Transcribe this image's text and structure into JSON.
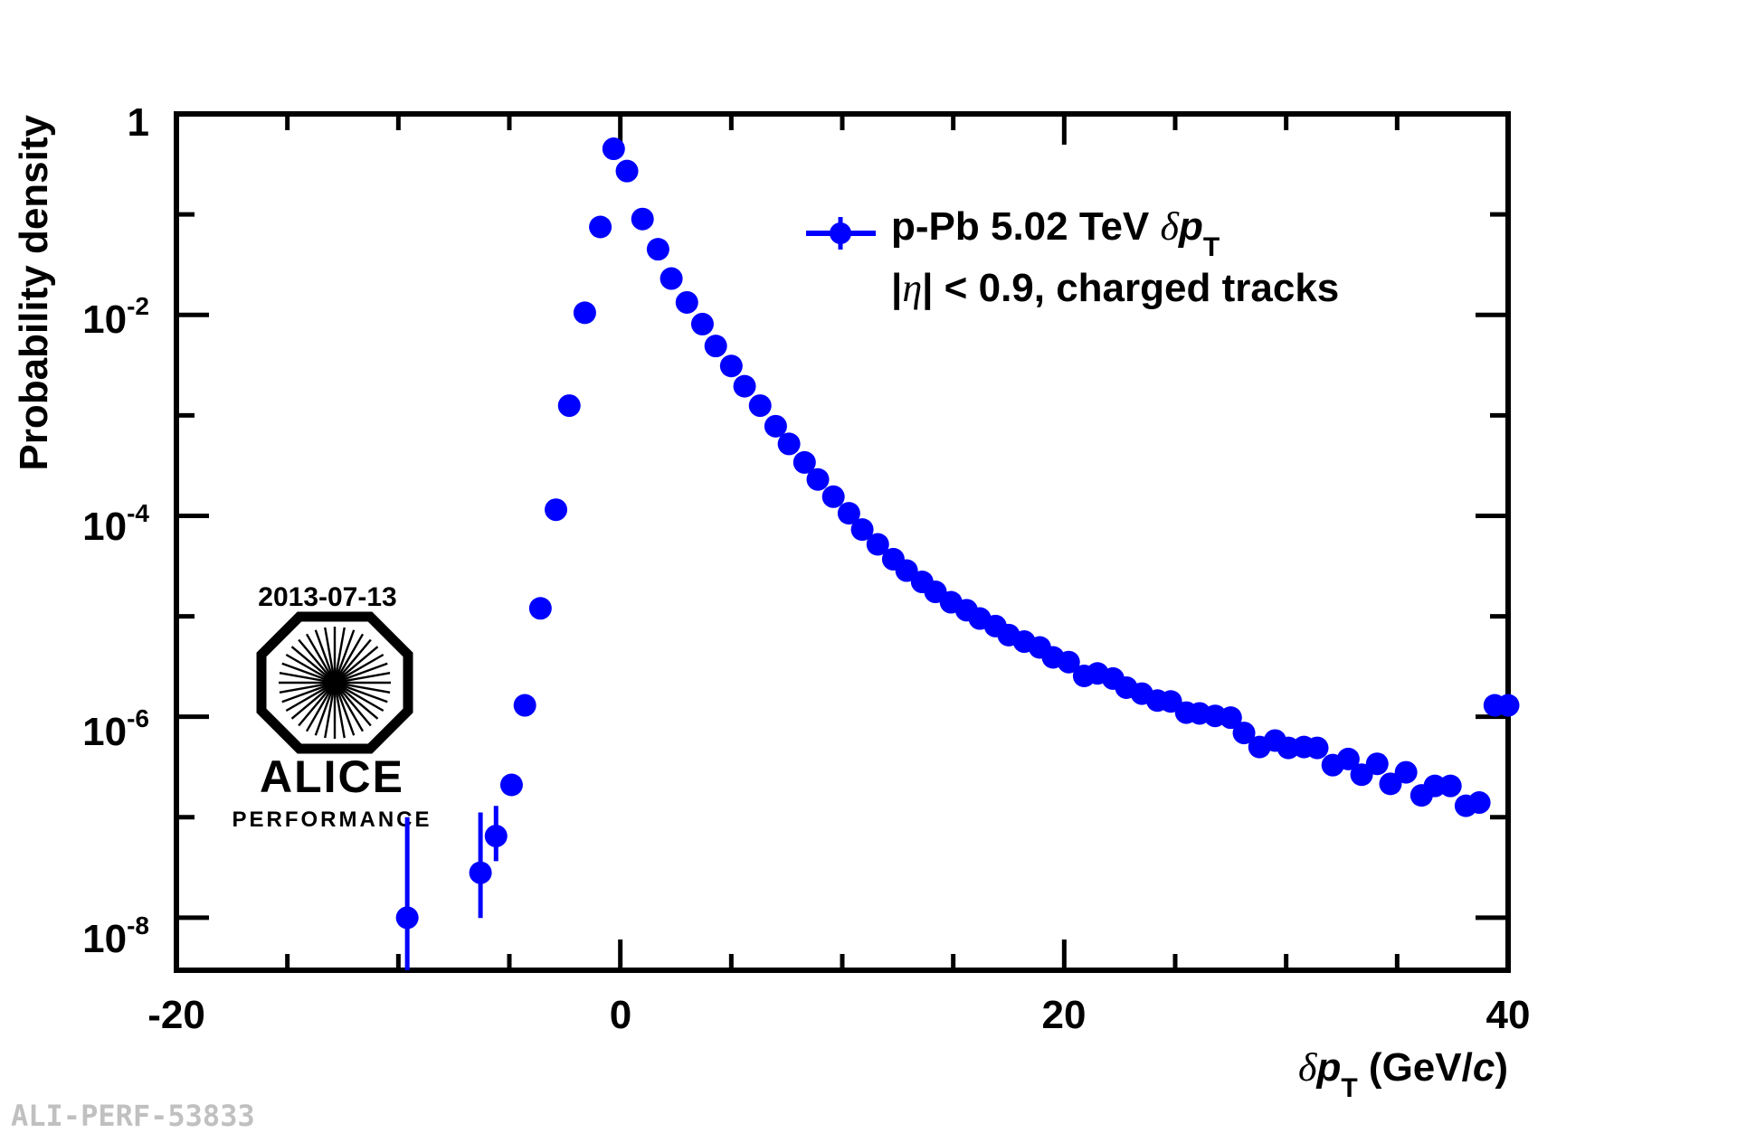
{
  "chart_data": {
    "type": "scatter",
    "xscale": "linear",
    "yscale": "log",
    "xlim": [
      -20,
      40
    ],
    "ylim": [
      3e-09,
      1
    ],
    "xlabel_prefix": "δ",
    "xlabel_var": "p",
    "xlabel_sub": "T",
    "xlabel_unit_open": " (GeV/",
    "xlabel_unit_c": "c",
    "xlabel_unit_close": ")",
    "ylabel": "Probability density",
    "xticks": [
      {
        "value": -20,
        "label": "-20"
      },
      {
        "value": 0,
        "label": "0"
      },
      {
        "value": 20,
        "label": "20"
      },
      {
        "value": 40,
        "label": "40"
      }
    ],
    "yticks": [
      {
        "value": 1,
        "label": "1",
        "exp": ""
      },
      {
        "value": 0.01,
        "label": "10",
        "exp": "-2"
      },
      {
        "value": 0.0001,
        "label": "10",
        "exp": "-4"
      },
      {
        "value": 1e-06,
        "label": "10",
        "exp": "-6"
      },
      {
        "value": 1e-08,
        "label": "10",
        "exp": "-8"
      }
    ],
    "legend": {
      "position": "top-right",
      "line1_a": "p-Pb 5.02 TeV  ",
      "line1_delta": "δ",
      "line1_p": "p",
      "line1_sub": "T",
      "line2_a": "|",
      "line2_eta": "η",
      "line2_b": "| < 0.9, charged tracks"
    },
    "series": [
      {
        "name": "p-Pb 5.02 TeV δpT",
        "color": "#0000ff",
        "x": [
          -9.6,
          -6.3,
          -5.6,
          -4.9,
          -4.3,
          -3.6,
          -2.9,
          -2.3,
          -1.6,
          -0.9,
          -0.3,
          0.3,
          1.0,
          1.7,
          2.3,
          3.0,
          3.7,
          4.3,
          5.0,
          5.6,
          6.3,
          7.0,
          7.6,
          8.3,
          8.9,
          9.6,
          10.3,
          10.9,
          11.6,
          12.3,
          12.9,
          13.6,
          14.2,
          14.9,
          15.6,
          16.2,
          16.9,
          17.5,
          18.2,
          18.9,
          19.5,
          20.2,
          20.9,
          21.5,
          22.2,
          22.8,
          23.5,
          24.2,
          24.8,
          25.5,
          26.1,
          26.8,
          27.5,
          28.1,
          28.8,
          29.5,
          30.1,
          30.8,
          31.4,
          32.1,
          32.8,
          33.4,
          34.1,
          34.7,
          35.4,
          36.1,
          36.7,
          37.4,
          38.1,
          38.7,
          39.4,
          40.0
        ],
        "y": [
          1e-08,
          2.8e-08,
          6.5e-08,
          2.1e-07,
          1.3e-06,
          1.2e-05,
          0.000115,
          0.00125,
          0.0105,
          0.075,
          0.45,
          0.27,
          0.09,
          0.045,
          0.023,
          0.0133,
          0.0081,
          0.0049,
          0.0031,
          0.00195,
          0.00125,
          0.00078,
          0.00052,
          0.00034,
          0.00023,
          0.000155,
          0.000106,
          7.3e-05,
          5.2e-05,
          3.7e-05,
          2.85e-05,
          2.2e-05,
          1.75e-05,
          1.38e-05,
          1.15e-05,
          9.5e-06,
          8e-06,
          6.5e-06,
          5.6e-06,
          4.9e-06,
          3.9e-06,
          3.5e-06,
          2.55e-06,
          2.7e-06,
          2.4e-06,
          1.95e-06,
          1.7e-06,
          1.45e-06,
          1.42e-06,
          1.1e-06,
          1.08e-06,
          1.02e-06,
          9.8e-07,
          6.9e-07,
          5e-07,
          5.8e-07,
          4.9e-07,
          5e-07,
          4.9e-07,
          3.3e-07,
          3.8e-07,
          2.65e-07,
          3.4e-07,
          2.15e-07,
          2.8e-07,
          1.65e-07,
          2.05e-07,
          2.05e-07,
          1.3e-07,
          1.4e-07,
          1.3e-06,
          1.3e-06
        ],
        "yerr_lo": [
          0.55,
          0.45,
          0.25,
          0.05,
          0.02,
          0,
          0,
          0,
          0,
          0,
          0,
          0,
          0,
          0,
          0,
          0,
          0,
          0,
          0,
          0,
          0,
          0,
          0,
          0,
          0,
          0,
          0,
          0,
          0,
          0,
          0,
          0,
          0,
          0,
          0,
          0,
          0,
          0,
          0,
          0,
          0,
          0,
          0,
          0,
          0,
          0,
          0,
          0,
          0,
          0,
          0,
          0,
          0,
          0,
          0,
          0,
          0,
          0,
          0,
          0,
          0,
          0,
          0,
          0,
          0,
          0.1,
          0,
          0,
          0.1,
          0,
          0,
          0
        ],
        "yerr_hi": [
          1.0,
          0.6,
          0.3,
          0.05,
          0.02,
          0,
          0,
          0,
          0,
          0,
          0,
          0,
          0,
          0,
          0,
          0,
          0,
          0,
          0,
          0,
          0,
          0,
          0,
          0,
          0,
          0,
          0,
          0,
          0,
          0,
          0,
          0,
          0,
          0,
          0,
          0,
          0,
          0,
          0,
          0,
          0,
          0,
          0,
          0,
          0,
          0,
          0,
          0,
          0,
          0,
          0,
          0,
          0,
          0,
          0,
          0,
          0,
          0,
          0,
          0,
          0,
          0,
          0,
          0,
          0,
          0.1,
          0,
          0,
          0.1,
          0,
          0,
          0
        ]
      }
    ]
  },
  "logo": {
    "date": "2013-07-13",
    "name": "ALICE",
    "subtitle": "PERFORMANCE"
  },
  "footer": {
    "id": "ALI-PERF-53833"
  }
}
